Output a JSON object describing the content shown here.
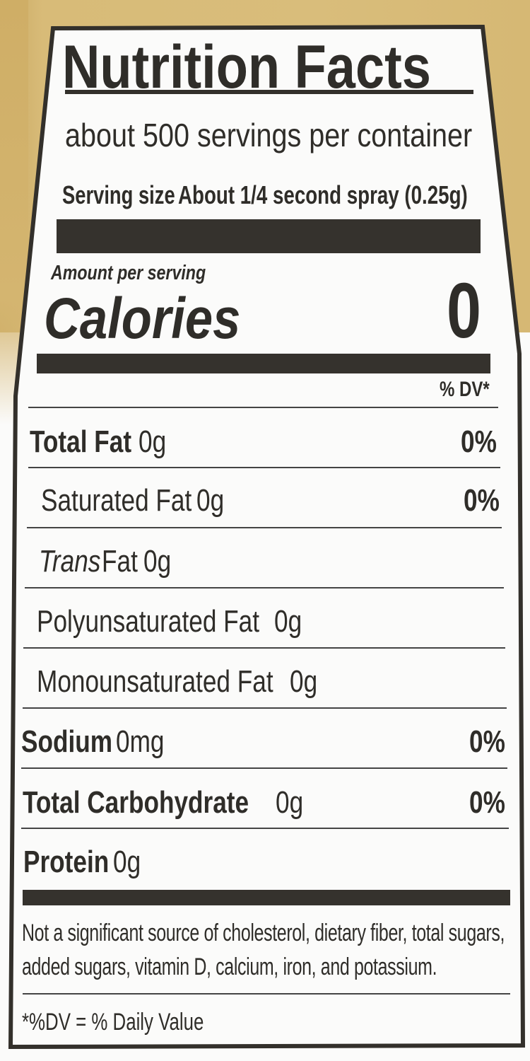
{
  "label": {
    "title": "Nutrition Facts",
    "servings_per_container": "about 500 servings per container",
    "serving_size_label": "Serving size",
    "serving_size_value": "About 1/4 second spray (0.25g)",
    "amount_per_serving": "Amount per serving",
    "calories_label": "Calories",
    "calories_value": "0",
    "dv_header": "% DV*",
    "nutrients": [
      {
        "name": "Total Fat",
        "amount": "0g",
        "dv": "0%"
      },
      {
        "name": "Saturated Fat",
        "amount": "0g",
        "dv": "0%"
      },
      {
        "name": "Trans",
        "name_suffix": "Fat",
        "amount": "0g",
        "dv": ""
      },
      {
        "name": "Polyunsaturated Fat",
        "amount": "0g",
        "dv": ""
      },
      {
        "name": "Monounsaturated Fat",
        "amount": "0g",
        "dv": ""
      },
      {
        "name": "Sodium",
        "amount": "0mg",
        "dv": "0%"
      },
      {
        "name": "Total Carbohydrate",
        "amount": "0g",
        "dv": "0%"
      },
      {
        "name": "Protein",
        "amount": "0g",
        "dv": ""
      }
    ],
    "footnote_line1": "Not a significant source of cholesterol, dietary fiber, total sugars,",
    "footnote_line2": "added sugars, vitamin D, calcium, iron, and potassium.",
    "dv_footnote": "*%DV = % Daily Value"
  },
  "colors": {
    "background_gold": "#d8bb78",
    "ink": "#2f2d29",
    "label_white": "#fbfbfa"
  }
}
